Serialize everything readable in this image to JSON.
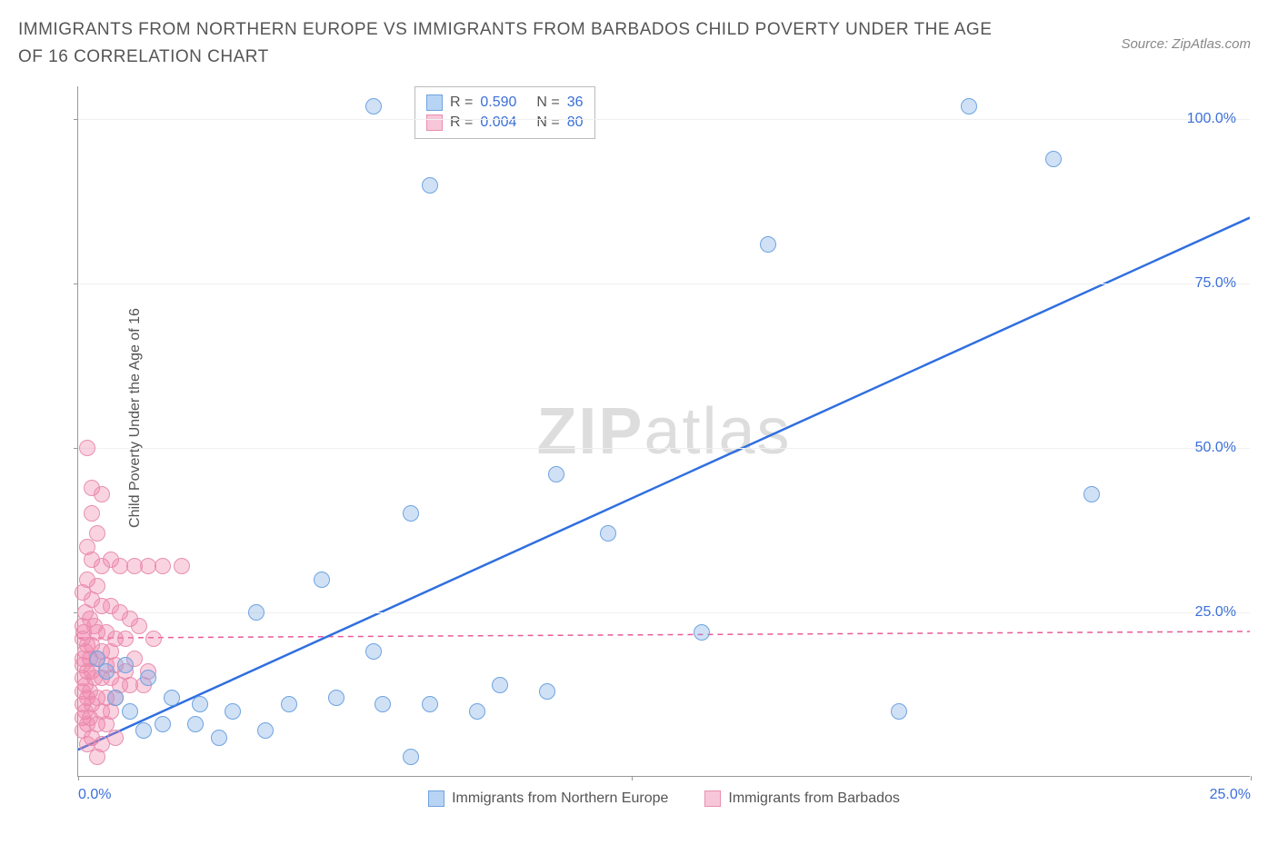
{
  "title": "IMMIGRANTS FROM NORTHERN EUROPE VS IMMIGRANTS FROM BARBADOS CHILD POVERTY UNDER THE AGE OF 16 CORRELATION CHART",
  "source": "Source: ZipAtlas.com",
  "watermark_zip": "ZIP",
  "watermark_atlas": "atlas",
  "y_axis_label": "Child Poverty Under the Age of 16",
  "chart": {
    "type": "scatter",
    "background_color": "#ffffff",
    "grid_color": "#f0f0f0",
    "axis_color": "#999999",
    "xlim": [
      0,
      25
    ],
    "ylim": [
      0,
      105
    ],
    "x_ticks": [
      {
        "pos": 0,
        "label": "0.0%"
      },
      {
        "pos": 11.8,
        "label": ""
      },
      {
        "pos": 25,
        "label": "25.0%"
      }
    ],
    "y_ticks": [
      {
        "pos": 25,
        "label": "25.0%"
      },
      {
        "pos": 50,
        "label": "50.0%"
      },
      {
        "pos": 75,
        "label": "75.0%"
      },
      {
        "pos": 100,
        "label": "100.0%"
      }
    ],
    "series_a": {
      "name": "Immigrants from Northern Europe",
      "color_fill": "rgba(120,170,230,0.35)",
      "color_stroke": "#6fa3e0",
      "marker_radius": 9,
      "R": "0.590",
      "N": "36",
      "trend": {
        "x1": 0,
        "y1": 4,
        "x2": 25,
        "y2": 85,
        "color": "#2f6fe0",
        "width": 2.5,
        "dash": "none"
      },
      "points": [
        [
          6.3,
          102
        ],
        [
          19.0,
          102
        ],
        [
          7.5,
          90
        ],
        [
          20.8,
          94
        ],
        [
          14.7,
          81
        ],
        [
          10.2,
          46
        ],
        [
          21.6,
          43
        ],
        [
          11.3,
          37
        ],
        [
          7.1,
          40
        ],
        [
          5.2,
          30
        ],
        [
          3.8,
          25
        ],
        [
          6.3,
          19
        ],
        [
          9.0,
          14
        ],
        [
          10.0,
          13
        ],
        [
          8.5,
          10
        ],
        [
          7.5,
          11
        ],
        [
          6.5,
          11
        ],
        [
          5.5,
          12
        ],
        [
          4.5,
          11
        ],
        [
          3.3,
          10
        ],
        [
          2.6,
          11
        ],
        [
          1.8,
          8
        ],
        [
          2.0,
          12
        ],
        [
          1.5,
          15
        ],
        [
          1.0,
          17
        ],
        [
          13.3,
          22
        ],
        [
          17.5,
          10
        ],
        [
          7.1,
          3
        ],
        [
          4.0,
          7
        ],
        [
          3.0,
          6
        ],
        [
          2.5,
          8
        ],
        [
          1.4,
          7
        ],
        [
          1.1,
          10
        ],
        [
          0.8,
          12
        ],
        [
          0.6,
          16
        ],
        [
          0.4,
          18
        ]
      ]
    },
    "series_b": {
      "name": "Immigrants from Barbados",
      "color_fill": "rgba(240,130,170,0.35)",
      "color_stroke": "#e88fb0",
      "marker_radius": 9,
      "R": "0.004",
      "N": "80",
      "trend": {
        "x1": 0,
        "y1": 21,
        "x2": 25,
        "y2": 22,
        "color": "#e85a9a",
        "width": 1.5,
        "dash": "6,5"
      },
      "points": [
        [
          0.2,
          50
        ],
        [
          0.3,
          44
        ],
        [
          0.5,
          43
        ],
        [
          0.3,
          40
        ],
        [
          0.4,
          37
        ],
        [
          0.2,
          35
        ],
        [
          0.3,
          33
        ],
        [
          0.5,
          32
        ],
        [
          0.7,
          33
        ],
        [
          0.9,
          32
        ],
        [
          1.2,
          32
        ],
        [
          1.5,
          32
        ],
        [
          1.8,
          32
        ],
        [
          2.2,
          32
        ],
        [
          0.2,
          30
        ],
        [
          0.4,
          29
        ],
        [
          0.1,
          28
        ],
        [
          0.3,
          27
        ],
        [
          0.5,
          26
        ],
        [
          0.7,
          26
        ],
        [
          0.9,
          25
        ],
        [
          1.1,
          24
        ],
        [
          0.15,
          25
        ],
        [
          0.25,
          24
        ],
        [
          0.1,
          23
        ],
        [
          0.35,
          23
        ],
        [
          0.12,
          22
        ],
        [
          0.4,
          22
        ],
        [
          0.6,
          22
        ],
        [
          0.8,
          21
        ],
        [
          1.0,
          21
        ],
        [
          1.3,
          23
        ],
        [
          1.6,
          21
        ],
        [
          0.1,
          21
        ],
        [
          0.2,
          20
        ],
        [
          0.3,
          20
        ],
        [
          0.5,
          19
        ],
        [
          0.7,
          19
        ],
        [
          0.15,
          19
        ],
        [
          0.1,
          18
        ],
        [
          0.25,
          18
        ],
        [
          0.4,
          18
        ],
        [
          0.6,
          17
        ],
        [
          0.8,
          17
        ],
        [
          1.0,
          16
        ],
        [
          1.2,
          18
        ],
        [
          1.5,
          16
        ],
        [
          0.1,
          17
        ],
        [
          0.2,
          16
        ],
        [
          0.3,
          16
        ],
        [
          0.1,
          15
        ],
        [
          0.35,
          15
        ],
        [
          0.5,
          15
        ],
        [
          0.7,
          15
        ],
        [
          0.9,
          14
        ],
        [
          1.1,
          14
        ],
        [
          1.4,
          14
        ],
        [
          0.15,
          14
        ],
        [
          0.1,
          13
        ],
        [
          0.25,
          13
        ],
        [
          0.4,
          12
        ],
        [
          0.6,
          12
        ],
        [
          0.8,
          12
        ],
        [
          0.2,
          12
        ],
        [
          0.1,
          11
        ],
        [
          0.3,
          11
        ],
        [
          0.5,
          10
        ],
        [
          0.7,
          10
        ],
        [
          0.15,
          10
        ],
        [
          0.1,
          9
        ],
        [
          0.25,
          9
        ],
        [
          0.4,
          8
        ],
        [
          0.6,
          8
        ],
        [
          0.2,
          8
        ],
        [
          0.1,
          7
        ],
        [
          0.8,
          6
        ],
        [
          0.3,
          6
        ],
        [
          0.5,
          5
        ],
        [
          0.2,
          5
        ],
        [
          0.4,
          3
        ]
      ]
    }
  },
  "legend_top": {
    "r_label": "R  =",
    "n_label": "N =",
    "swatch_a_fill": "#b8d4f5",
    "swatch_a_stroke": "#6fa3e0",
    "swatch_b_fill": "#f7c6d9",
    "swatch_b_stroke": "#e88fb0"
  }
}
